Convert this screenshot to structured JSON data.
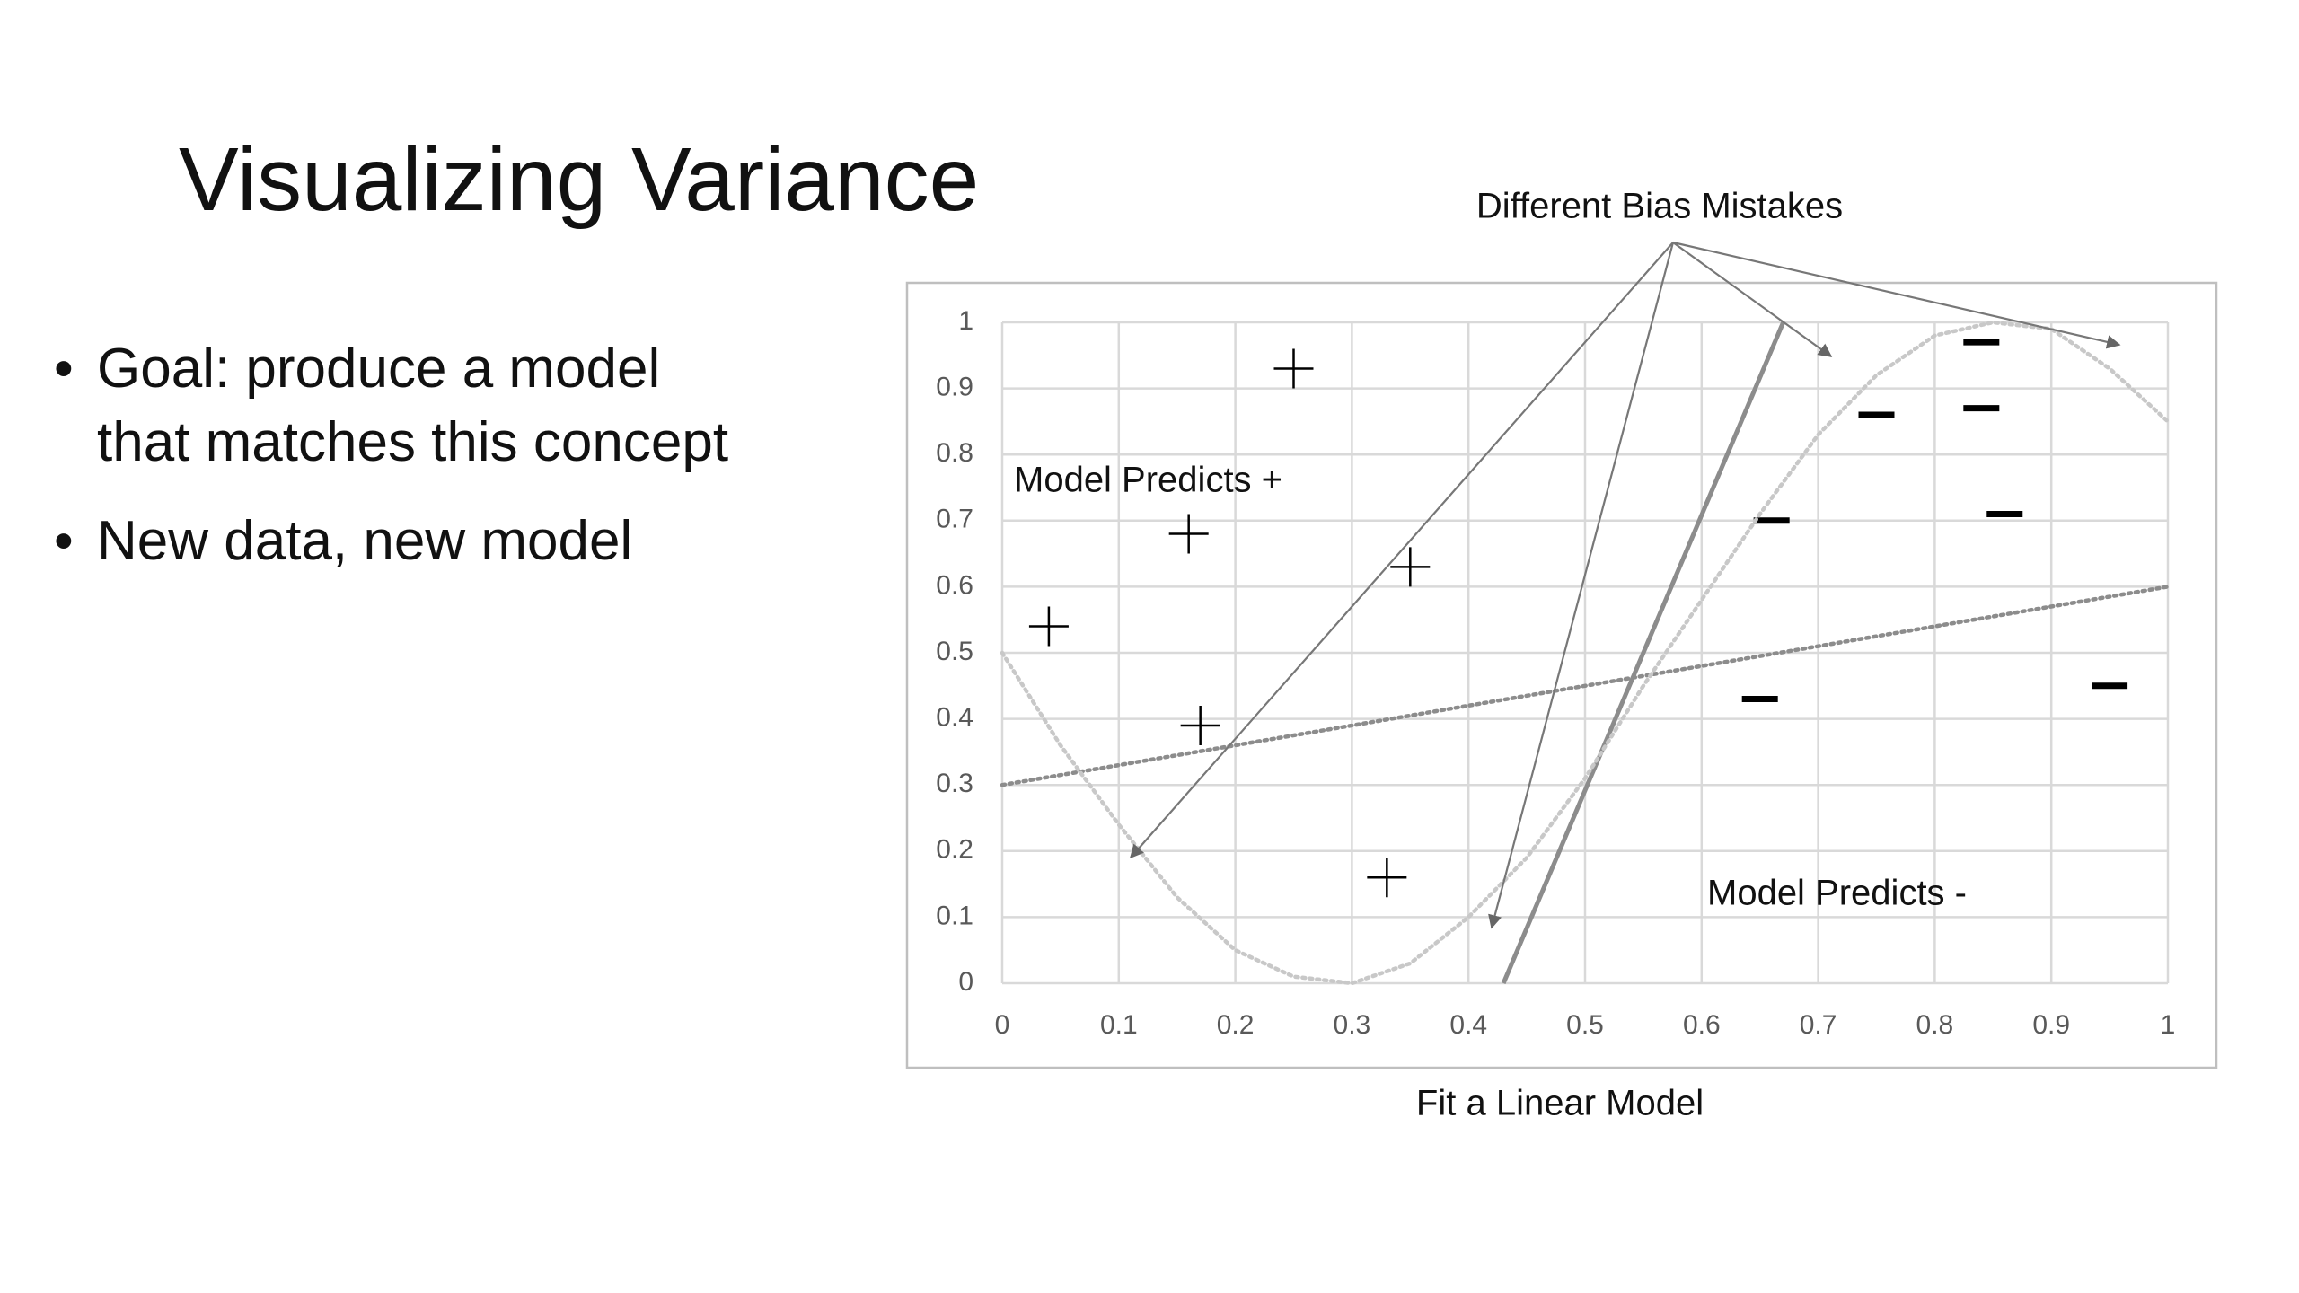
{
  "slide": {
    "title": "Visualizing Variance",
    "bullets": [
      [
        "Goal: produce a model",
        "that matches this concept"
      ],
      [
        "New data, new model"
      ]
    ]
  },
  "chart_data": {
    "type": "scatter",
    "annotations": [
      "Different Bias Mistakes",
      "Model Predicts +",
      "Model Predicts -"
    ],
    "caption": "Fit a Linear Model",
    "xlim": [
      0,
      1
    ],
    "ylim": [
      0,
      1
    ],
    "xticks": [
      0,
      0.1,
      0.2,
      0.3,
      0.4,
      0.5,
      0.6,
      0.7,
      0.8,
      0.9,
      1
    ],
    "yticks": [
      0,
      0.1,
      0.2,
      0.3,
      0.4,
      0.5,
      0.6,
      0.7,
      0.8,
      0.9,
      1
    ],
    "grid": true,
    "series": [
      {
        "marker": "plus",
        "color": "#000000",
        "x": [
          0.04,
          0.16,
          0.17,
          0.25,
          0.35,
          0.33
        ],
        "values": [
          0.54,
          0.68,
          0.39,
          0.93,
          0.63,
          0.16
        ]
      },
      {
        "marker": "minus",
        "color": "#000000",
        "x": [
          0.84,
          0.75,
          0.84,
          0.66,
          0.86,
          0.65,
          0.95
        ],
        "values": [
          0.97,
          0.86,
          0.87,
          0.7,
          0.71,
          0.43,
          0.45
        ]
      },
      {
        "line": "solid",
        "color": "#8c8c8c",
        "x": [
          0.43,
          0.67
        ],
        "values": [
          0,
          1
        ]
      },
      {
        "line": "dotted",
        "color": "#8c8c8c",
        "x": [
          0,
          1
        ],
        "values": [
          0.3,
          0.6
        ]
      },
      {
        "line": "dotted",
        "color": "#c8c8c8",
        "x": [
          0,
          0.05,
          0.1,
          0.15,
          0.2,
          0.25,
          0.3,
          0.35,
          0.4,
          0.45,
          0.5,
          0.55,
          0.6,
          0.65,
          0.7,
          0.75,
          0.8,
          0.85,
          0.9,
          0.95,
          1
        ],
        "values": [
          0.5,
          0.36,
          0.24,
          0.13,
          0.05,
          0.01,
          0,
          0.03,
          0.1,
          0.19,
          0.31,
          0.45,
          0.58,
          0.71,
          0.83,
          0.92,
          0.98,
          1,
          0.99,
          0.93,
          0.85
        ]
      }
    ]
  }
}
